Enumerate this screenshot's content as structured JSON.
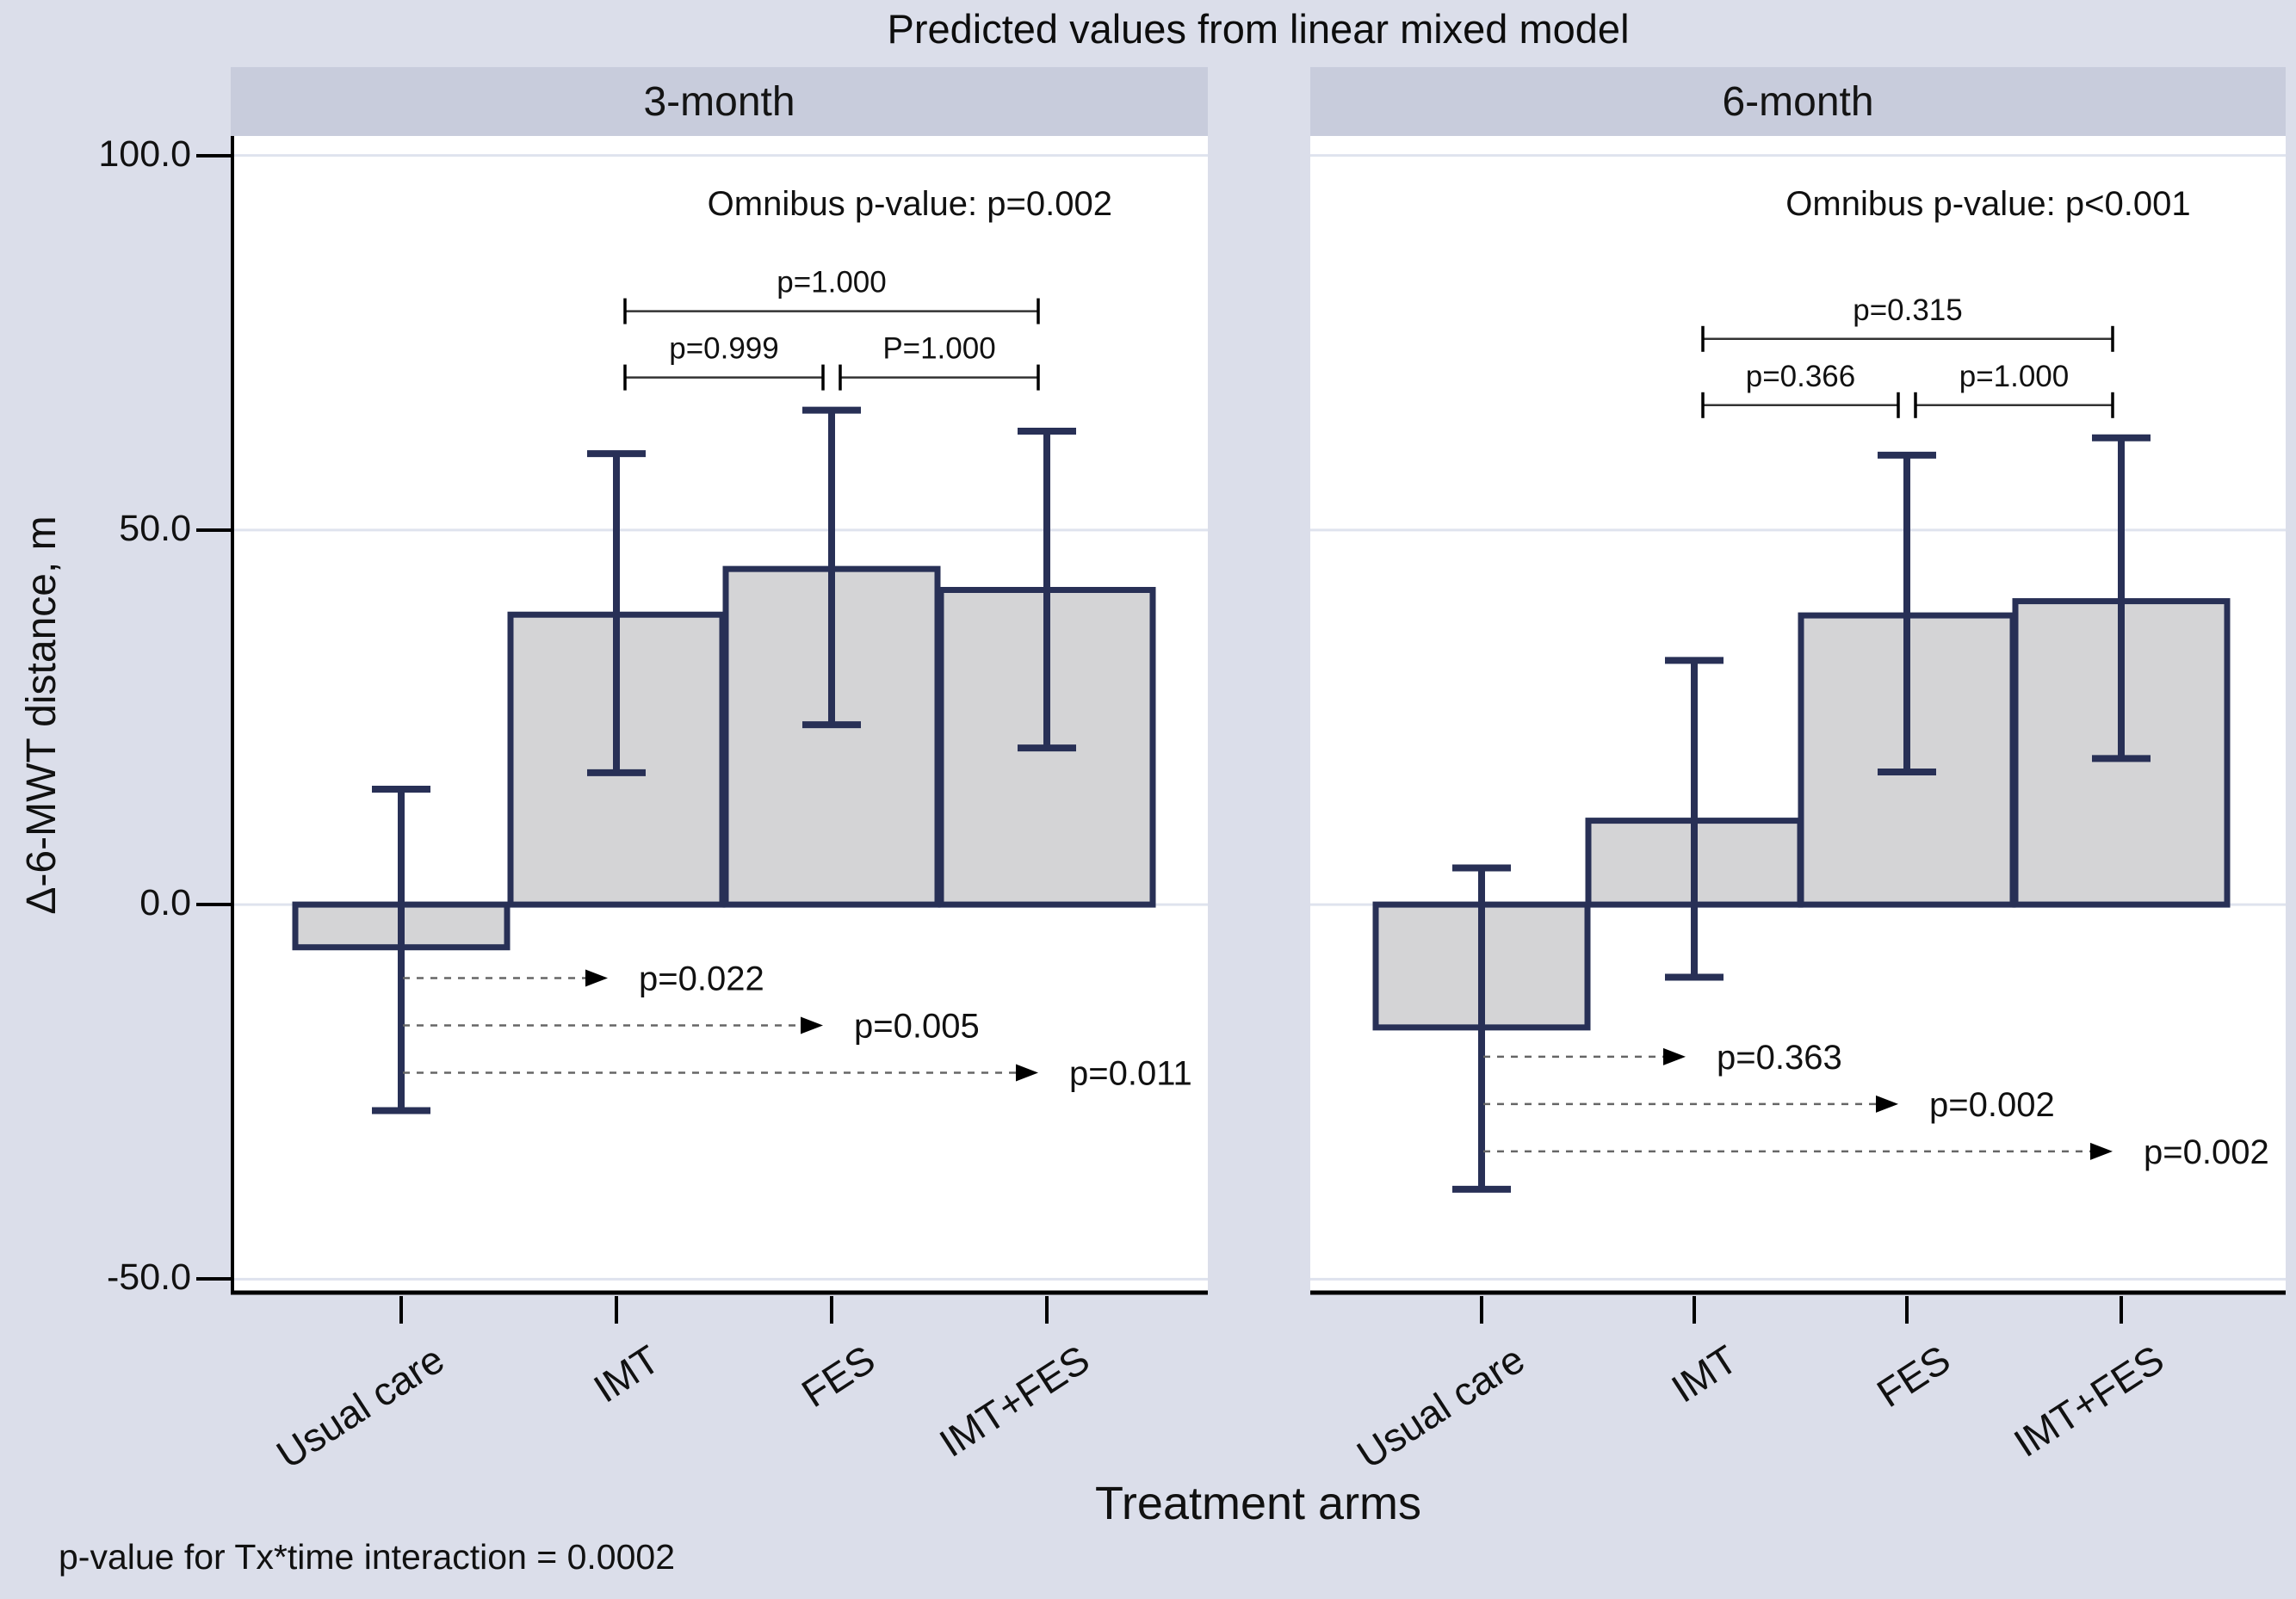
{
  "figure": {
    "title": "Predicted values from linear mixed model",
    "footnote": "p-value for Tx*time interaction = 0.0002"
  },
  "chart_data": {
    "type": "bar",
    "categories": [
      "Usual care",
      "IMT",
      "FES",
      "IMT+FES"
    ],
    "xlabel": "Treatment arms",
    "ylabel": "Δ-6-MWT distance, m",
    "ylim": [
      -51.8,
      102.6
    ],
    "yticks": [
      {
        "value": 100,
        "label": "100.0"
      },
      {
        "value": 50,
        "label": "50.0"
      },
      {
        "value": 0,
        "label": "0.0"
      },
      {
        "value": -50,
        "label": "-50.0"
      }
    ],
    "grid": true,
    "legend": "none",
    "colors": {
      "background": "#dbdeea",
      "panel_header": "#c8ccdc",
      "plot_bg": "#ffffff",
      "gridline": "#dfe3ee",
      "bar_fill": "#d4d4d6",
      "bar_border": "#283056",
      "error_bar": "#283056",
      "axis_line": "#000000",
      "bracket_line": "#333333",
      "dashed_line": "#666666",
      "text": "#111111"
    },
    "panels": [
      {
        "name": "3-month",
        "omnibus_label": "Omnibus p-value: p=0.002",
        "series": [
          {
            "category": "Usual care",
            "mean": -5.7,
            "ci_low": -27.5,
            "ci_high": 15.4
          },
          {
            "category": "IMT",
            "mean": 38.7,
            "ci_low": 17.6,
            "ci_high": 60.2
          },
          {
            "category": "FES",
            "mean": 44.8,
            "ci_low": 24.0,
            "ci_high": 66.0
          },
          {
            "category": "IMT+FES",
            "mean": 42.0,
            "ci_low": 20.9,
            "ci_high": 63.2
          }
        ],
        "pairwise_brackets": [
          {
            "from": "IMT",
            "to": "IMT+FES",
            "label": "p=1.000",
            "row": 1
          },
          {
            "from": "IMT",
            "to": "FES",
            "label": "p=0.999",
            "row": 2
          },
          {
            "from": "FES",
            "to": "IMT+FES",
            "label": "P=1.000",
            "row": 2
          }
        ],
        "vs_usual_care_arrows": [
          {
            "to": "IMT",
            "label": "p=0.022"
          },
          {
            "to": "FES",
            "label": "p=0.005"
          },
          {
            "to": "IMT+FES",
            "label": "p=0.011"
          }
        ]
      },
      {
        "name": "6-month",
        "omnibus_label": "Omnibus p-value: p<0.001",
        "series": [
          {
            "category": "Usual care",
            "mean": -16.4,
            "ci_low": -38.0,
            "ci_high": 4.9
          },
          {
            "category": "IMT",
            "mean": 11.2,
            "ci_low": -9.7,
            "ci_high": 32.6
          },
          {
            "category": "FES",
            "mean": 38.6,
            "ci_low": 17.7,
            "ci_high": 60.0
          },
          {
            "category": "IMT+FES",
            "mean": 40.5,
            "ci_low": 19.5,
            "ci_high": 62.3
          }
        ],
        "pairwise_brackets": [
          {
            "from": "IMT",
            "to": "IMT+FES",
            "label": "p=0.315",
            "row": 1
          },
          {
            "from": "IMT",
            "to": "FES",
            "label": "p=0.366",
            "row": 2
          },
          {
            "from": "FES",
            "to": "IMT+FES",
            "label": "p=1.000",
            "row": 2
          }
        ],
        "vs_usual_care_arrows": [
          {
            "to": "IMT",
            "label": "p=0.363"
          },
          {
            "to": "FES",
            "label": "p=0.002"
          },
          {
            "to": "IMT+FES",
            "label": "p=0.002"
          }
        ]
      }
    ]
  }
}
